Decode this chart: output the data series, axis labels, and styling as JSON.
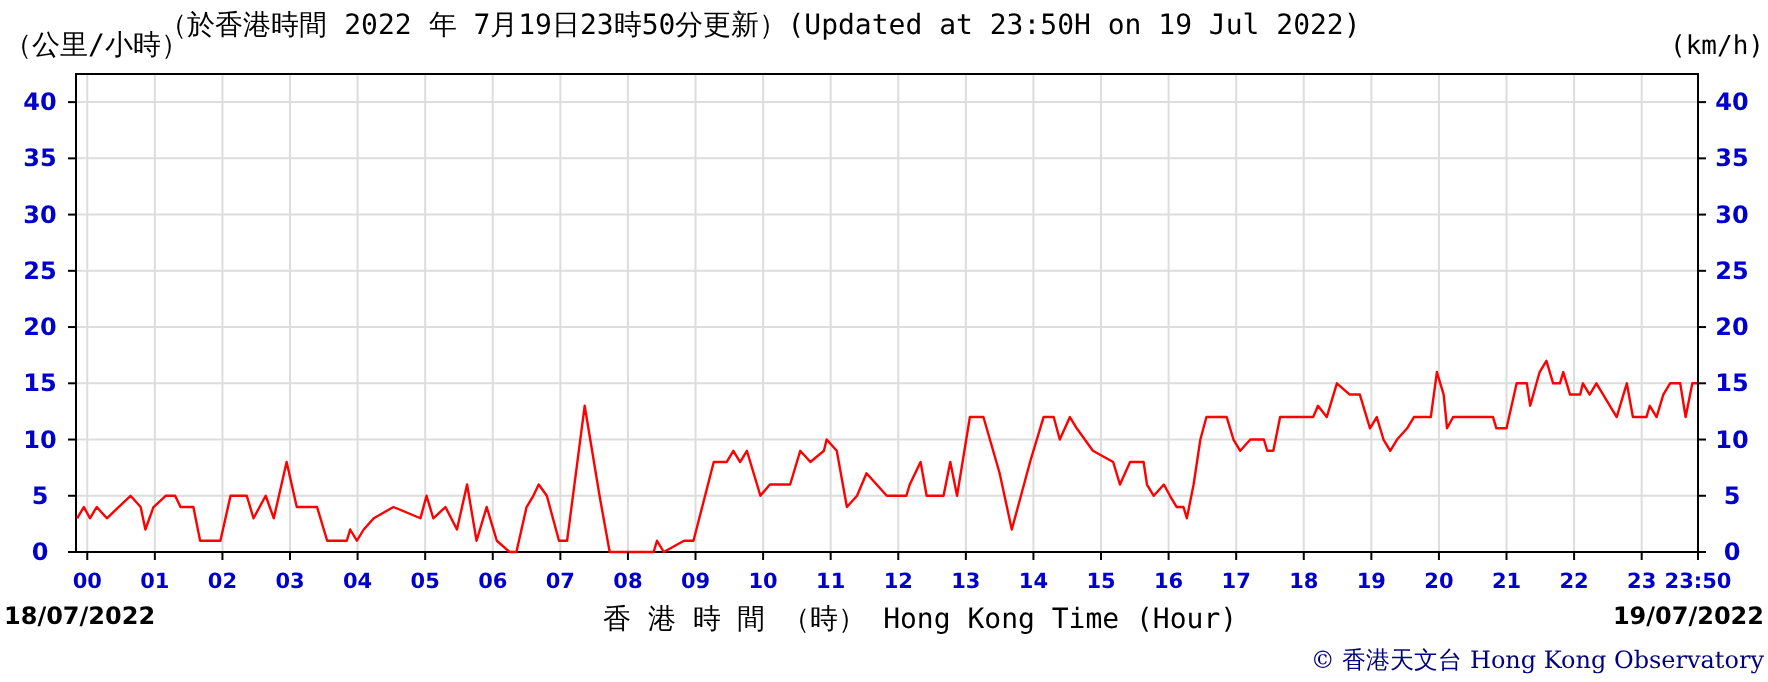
{
  "chart_data": {
    "type": "line",
    "title": "（於香港時間 2022 年 7月19日23時50分更新）(Updated at 23:50H on 19 Jul 2022)",
    "ylabel": "（公里/小時）",
    "y2label": "(km/h)",
    "xlabel": "香 港 時 間 （時） Hong Kong Time (Hour)",
    "annotations": [
      "18/07/2022",
      "19/07/2022",
      "© 香港天文台 Hong Kong Observatory"
    ],
    "xlim": [
      -0.1667,
      23.8333
    ],
    "xticks": [
      {
        "value": 0,
        "label": "00"
      },
      {
        "value": 1,
        "label": "01"
      },
      {
        "value": 2,
        "label": "02"
      },
      {
        "value": 3,
        "label": "03"
      },
      {
        "value": 4,
        "label": "04"
      },
      {
        "value": 5,
        "label": "05"
      },
      {
        "value": 6,
        "label": "06"
      },
      {
        "value": 7,
        "label": "07"
      },
      {
        "value": 8,
        "label": "08"
      },
      {
        "value": 9,
        "label": "09"
      },
      {
        "value": 10,
        "label": "10"
      },
      {
        "value": 11,
        "label": "11"
      },
      {
        "value": 12,
        "label": "12"
      },
      {
        "value": 13,
        "label": "13"
      },
      {
        "value": 14,
        "label": "14"
      },
      {
        "value": 15,
        "label": "15"
      },
      {
        "value": 16,
        "label": "16"
      },
      {
        "value": 17,
        "label": "17"
      },
      {
        "value": 18,
        "label": "18"
      },
      {
        "value": 19,
        "label": "19"
      },
      {
        "value": 20,
        "label": "20"
      },
      {
        "value": 21,
        "label": "21"
      },
      {
        "value": 22,
        "label": "22"
      },
      {
        "value": 23,
        "label": "23"
      },
      {
        "value": 23.8333,
        "label": "23:50"
      }
    ],
    "ylim": [
      0,
      42.5
    ],
    "yticks": [
      0,
      5,
      10,
      15,
      20,
      25,
      30,
      35,
      40
    ],
    "y2lim": [
      0,
      42.5
    ],
    "y2ticks": [
      0,
      5,
      10,
      15,
      20,
      25,
      30,
      35,
      40
    ],
    "grid": true,
    "series": [
      {
        "color": "#ff0000",
        "x": [
          -0.15,
          -0.05,
          0.04,
          0.14,
          0.29,
          0.64,
          0.79,
          0.86,
          0.98,
          1.16,
          1.3,
          1.38,
          1.57,
          1.67,
          1.97,
          2.12,
          2.36,
          2.46,
          2.64,
          2.76,
          2.95,
          3.1,
          3.4,
          3.55,
          3.84,
          3.89,
          3.99,
          4.09,
          4.24,
          4.53,
          4.93,
          5.02,
          5.12,
          5.3,
          5.47,
          5.62,
          5.76,
          5.91,
          6.06,
          6.25,
          6.35,
          6.5,
          6.6,
          6.68,
          6.8,
          6.98,
          7.1,
          7.36,
          7.58,
          7.73,
          8.38,
          8.43,
          8.53,
          8.83,
          8.97,
          9.27,
          9.46,
          9.56,
          9.66,
          9.76,
          9.96,
          10.1,
          10.4,
          10.45,
          10.55,
          10.7,
          10.9,
          10.94,
          11.09,
          11.24,
          11.39,
          11.53,
          11.68,
          11.83,
          12.12,
          12.17,
          12.33,
          12.42,
          12.67,
          12.77,
          12.87,
          13.06,
          13.26,
          13.5,
          13.68,
          13.95,
          14.15,
          14.3,
          14.39,
          14.54,
          14.64,
          14.88,
          15.18,
          15.28,
          15.43,
          15.63,
          15.68,
          15.78,
          15.93,
          16.02,
          16.12,
          16.22,
          16.27,
          16.37,
          16.47,
          16.56,
          16.86,
          16.96,
          17.06,
          17.21,
          17.41,
          17.46,
          17.55,
          17.65,
          18.14,
          18.21,
          18.34,
          18.49,
          18.68,
          18.83,
          18.98,
          19.08,
          19.18,
          19.28,
          19.38,
          19.53,
          19.63,
          19.88,
          19.97,
          20.07,
          20.12,
          20.21,
          20.8,
          20.85,
          21.0,
          21.15,
          21.3,
          21.35,
          21.49,
          21.59,
          21.69,
          21.79,
          21.84,
          21.94,
          22.09,
          22.13,
          22.23,
          22.33,
          22.43,
          22.63,
          22.78,
          22.87,
          23.07,
          23.12,
          23.22,
          23.32,
          23.42,
          23.57,
          23.65,
          23.75,
          23.82
        ],
        "values": [
          3,
          4,
          3,
          4,
          3,
          5,
          4,
          2,
          4,
          5,
          5,
          4,
          4,
          1,
          1,
          5,
          5,
          3,
          5,
          3,
          8,
          4,
          4,
          1,
          1,
          2,
          1,
          2,
          3,
          4,
          3,
          5,
          3,
          4,
          2,
          6,
          1,
          4,
          1,
          0,
          0,
          4,
          5,
          6,
          5,
          1,
          1,
          13,
          5,
          0,
          0,
          1,
          0,
          1,
          1,
          8,
          8,
          9,
          8,
          9,
          5,
          6,
          6,
          7,
          9,
          8,
          9,
          10,
          9,
          4,
          5,
          7,
          6,
          5,
          5,
          6,
          8,
          5,
          5,
          8,
          5,
          12,
          12,
          7,
          2,
          8,
          12,
          12,
          10,
          12,
          11,
          9,
          8,
          6,
          8,
          8,
          6,
          5,
          6,
          5,
          4,
          4,
          3,
          6,
          10,
          12,
          12,
          10,
          9,
          10,
          10,
          9,
          9,
          12,
          12,
          13,
          12,
          15,
          14,
          14,
          11,
          12,
          10,
          9,
          10,
          11,
          12,
          12,
          16,
          14,
          11,
          12,
          12,
          11,
          11,
          15,
          15,
          13,
          16,
          17,
          15,
          15,
          16,
          14,
          14,
          15,
          14,
          15,
          14,
          12,
          15,
          12,
          12,
          13,
          12,
          14,
          15,
          15,
          12,
          15,
          15
        ]
      }
    ]
  }
}
